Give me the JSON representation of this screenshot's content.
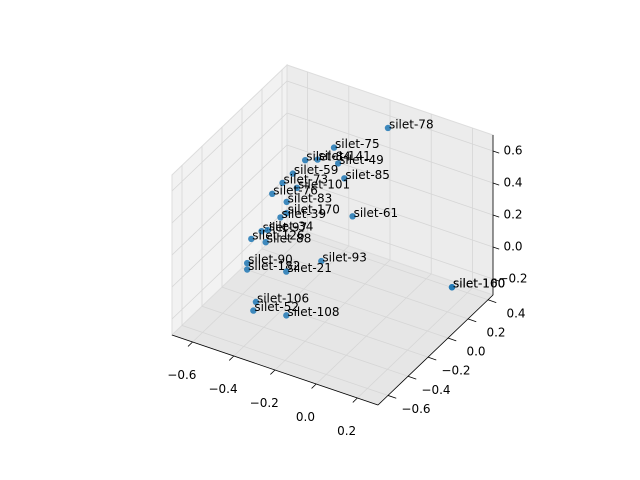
{
  "chart_data": {
    "type": "scatter3d",
    "color": "#1f77b4",
    "grid": true,
    "xlim": [
      -0.7,
      0.3
    ],
    "ylim": [
      -0.7,
      0.45
    ],
    "zlim": [
      -0.3,
      0.7
    ],
    "xticks": [
      {
        "value": -0.6,
        "label": "−0.6"
      },
      {
        "value": -0.4,
        "label": "−0.4"
      },
      {
        "value": -0.2,
        "label": "−0.2"
      },
      {
        "value": 0,
        "label": "0.0"
      },
      {
        "value": 0.2,
        "label": "0.2"
      }
    ],
    "yticks": [
      {
        "value": -0.6,
        "label": "−0.6"
      },
      {
        "value": -0.4,
        "label": "−0.4"
      },
      {
        "value": -0.2,
        "label": "−0.2"
      },
      {
        "value": 0,
        "label": "0.0"
      },
      {
        "value": 0.2,
        "label": "0.2"
      },
      {
        "value": 0.4,
        "label": "0.4"
      }
    ],
    "zticks": [
      {
        "value": -0.2,
        "label": "−0.2"
      },
      {
        "value": 0,
        "label": "0.0"
      },
      {
        "value": 0.2,
        "label": "0.2"
      },
      {
        "value": 0.4,
        "label": "0.4"
      },
      {
        "value": 0.6,
        "label": "0.6"
      }
    ],
    "labels": [
      "silet-78",
      "silet-75",
      "silet-141",
      "silet-49",
      "silet-84",
      "silet-59",
      "silet-85",
      "silet-73",
      "silet-101",
      "silet-76",
      "silet-83",
      "silet-170",
      "silet-61",
      "silet-39",
      "silet-97",
      "silet-34",
      "silet-126",
      "silet-88",
      "silet-93",
      "silet-90",
      "silet-182",
      "silet-21",
      "silet-100",
      "silet-160",
      "silet-106",
      "silet-52",
      "silet-108"
    ],
    "x": [
      -0.154,
      -0.36,
      -0.44,
      -0.34,
      -0.5,
      -0.56,
      -0.31,
      -0.61,
      -0.54,
      -0.66,
      -0.59,
      -0.59,
      -0.27,
      -0.62,
      -0.6,
      -0.57,
      -0.65,
      -0.58,
      -0.31,
      -0.67,
      -0.67,
      -0.48,
      0.13,
      0.13,
      -0.46,
      -0.47,
      -0.31
    ],
    "y": [
      0.335,
      0.22,
      0.22,
      0.22,
      0.22,
      0.22,
      0.22,
      0.22,
      0.22,
      0.22,
      0.22,
      0.22,
      0.22,
      0.22,
      -0.01,
      -0.01,
      -0.01,
      -0.01,
      -0.01,
      -0.01,
      -0.01,
      -0.01,
      0.39,
      0.39,
      -0.355,
      -0.36,
      -0.36
    ],
    "z": [
      0.614,
      0.47,
      0.36,
      0.38,
      0.33,
      0.22,
      0.3,
      0.14,
      0.14,
      0.05,
      0.03,
      -0.04,
      0.08,
      -0.08,
      -0.02,
      0,
      -0.09,
      -0.08,
      -0.08,
      -0.25,
      -0.29,
      -0.22,
      -0.29,
      -0.29,
      -0.195,
      -0.25,
      -0.21
    ]
  }
}
